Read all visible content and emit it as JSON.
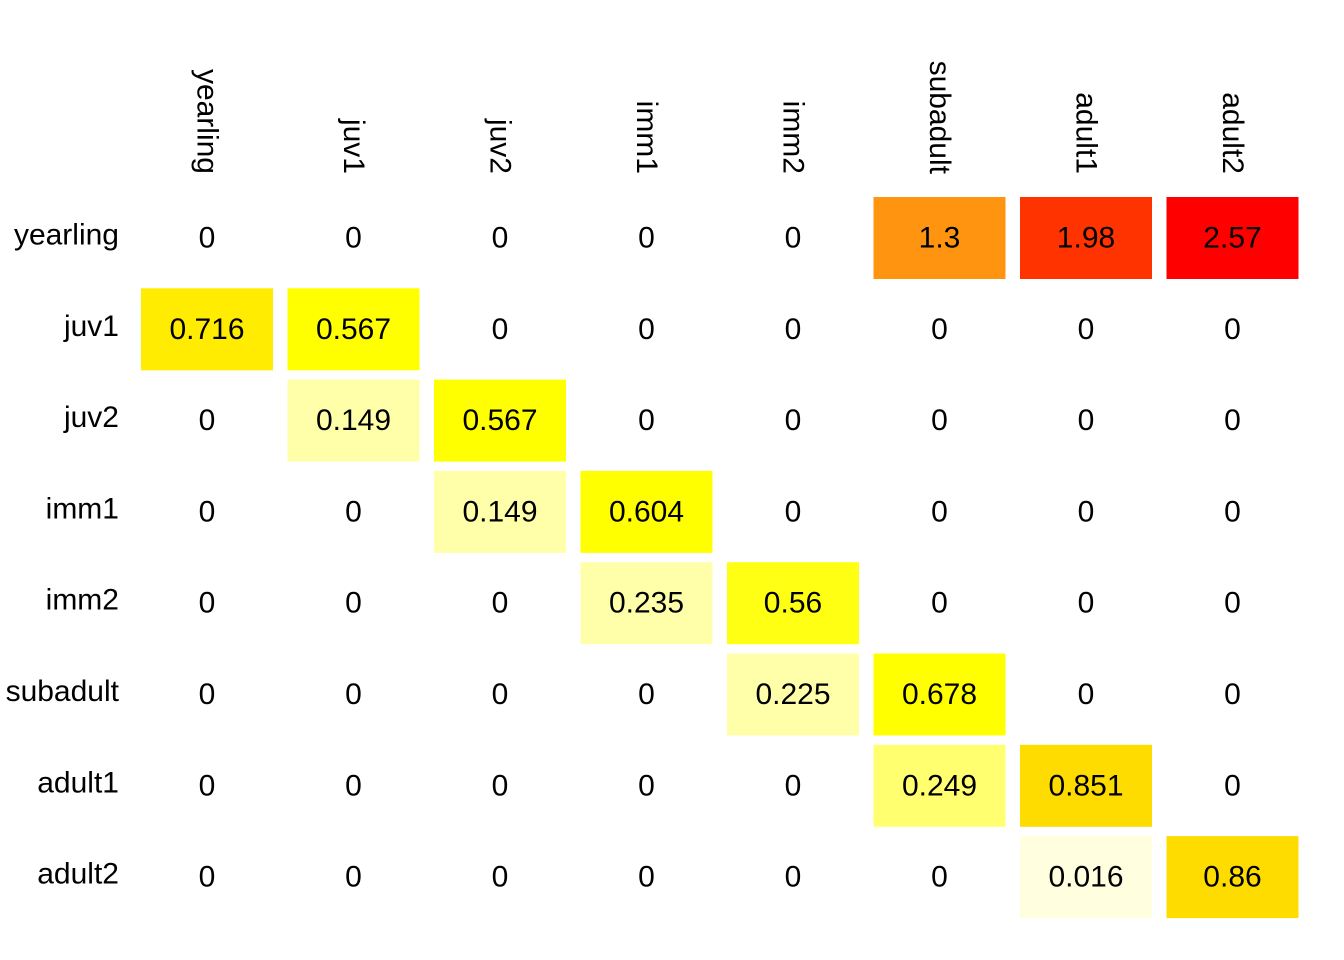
{
  "chart_data": {
    "type": "heatmap",
    "title": "",
    "xlabel": "",
    "ylabel": "",
    "row_labels": [
      "yearling",
      "juv1",
      "juv2",
      "imm1",
      "imm2",
      "subadult",
      "adult1",
      "adult2"
    ],
    "col_labels": [
      "yearling",
      "juv1",
      "juv2",
      "imm1",
      "imm2",
      "subadult",
      "adult1",
      "adult2"
    ],
    "display_values": [
      [
        "0",
        "0",
        "0",
        "0",
        "0",
        "1.3",
        "1.98",
        "2.57"
      ],
      [
        "0.716",
        "0.567",
        "0",
        "0",
        "0",
        "0",
        "0",
        "0"
      ],
      [
        "0",
        "0.149",
        "0.567",
        "0",
        "0",
        "0",
        "0",
        "0"
      ],
      [
        "0",
        "0",
        "0.149",
        "0.604",
        "0",
        "0",
        "0",
        "0"
      ],
      [
        "0",
        "0",
        "0",
        "0.235",
        "0.56",
        "0",
        "0",
        "0"
      ],
      [
        "0",
        "0",
        "0",
        "0",
        "0.225",
        "0.678",
        "0",
        "0"
      ],
      [
        "0",
        "0",
        "0",
        "0",
        "0",
        "0.249",
        "0.851",
        "0"
      ],
      [
        "0",
        "0",
        "0",
        "0",
        "0",
        "0",
        "0.016",
        "0.86"
      ]
    ],
    "values": [
      [
        0,
        0,
        0,
        0,
        0,
        1.3,
        1.98,
        2.57
      ],
      [
        0.716,
        0.567,
        0,
        0,
        0,
        0,
        0,
        0
      ],
      [
        0,
        0.149,
        0.567,
        0,
        0,
        0,
        0,
        0
      ],
      [
        0,
        0,
        0.149,
        0.604,
        0,
        0,
        0,
        0
      ],
      [
        0,
        0,
        0,
        0.235,
        0.56,
        0,
        0,
        0
      ],
      [
        0,
        0,
        0,
        0,
        0.225,
        0.678,
        0,
        0
      ],
      [
        0,
        0,
        0,
        0,
        0,
        0.249,
        0.851,
        0
      ],
      [
        0,
        0,
        0,
        0,
        0,
        0,
        0.016,
        0.86
      ]
    ],
    "cell_colors": [
      [
        null,
        null,
        null,
        null,
        null,
        "#FF9410",
        "#FF3300",
        "#FF0000"
      ],
      [
        "#FFEC00",
        "#FFFF00",
        null,
        null,
        null,
        null,
        null,
        null
      ],
      [
        null,
        "#FFFFAA",
        "#FFFF00",
        null,
        null,
        null,
        null,
        null
      ],
      [
        null,
        null,
        "#FFFFAA",
        "#FFFF00",
        null,
        null,
        null,
        null
      ],
      [
        null,
        null,
        null,
        "#FFFFAA",
        "#FFFF14",
        null,
        null,
        null
      ],
      [
        null,
        null,
        null,
        null,
        "#FFFFAA",
        "#FFFF00",
        null,
        null
      ],
      [
        null,
        null,
        null,
        null,
        null,
        "#FFFF70",
        "#FFDC00",
        null
      ],
      [
        null,
        null,
        null,
        null,
        null,
        null,
        "#FFFFE0",
        "#FFDC00"
      ]
    ],
    "zero_cells_colored": false,
    "grid": false,
    "legend": "none",
    "colormap": "heat (white-yellow-orange-red)"
  }
}
